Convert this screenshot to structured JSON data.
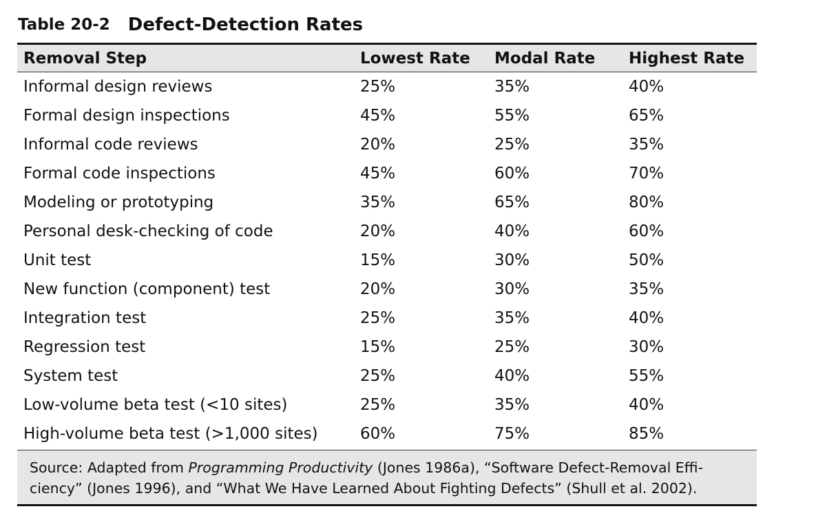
{
  "caption": {
    "label": "Table 20-2",
    "title": "Defect-Detection Rates"
  },
  "table": {
    "headers": [
      "Removal Step",
      "Lowest Rate",
      "Modal Rate",
      "Highest Rate"
    ],
    "rows": [
      [
        "Informal design reviews",
        "25%",
        "35%",
        "40%"
      ],
      [
        "Formal design inspections",
        "45%",
        "55%",
        "65%"
      ],
      [
        "Informal code reviews",
        "20%",
        "25%",
        "35%"
      ],
      [
        "Formal code inspections",
        "45%",
        "60%",
        "70%"
      ],
      [
        "Modeling or prototyping",
        "35%",
        "65%",
        "80%"
      ],
      [
        "Personal desk-checking of code",
        "20%",
        "40%",
        "60%"
      ],
      [
        "Unit test",
        "15%",
        "30%",
        "50%"
      ],
      [
        "New function (component) test",
        "20%",
        "30%",
        "35%"
      ],
      [
        "Integration test",
        "25%",
        "35%",
        "40%"
      ],
      [
        "Regression test",
        "15%",
        "25%",
        "30%"
      ],
      [
        "System test",
        "25%",
        "40%",
        "55%"
      ],
      [
        "Low-volume beta test (<10 sites)",
        "25%",
        "35%",
        "40%"
      ],
      [
        "High-volume beta test (>1,000 sites)",
        "60%",
        "75%",
        "85%"
      ]
    ]
  },
  "source": {
    "prefix": "Source: Adapted from ",
    "italic": "Programming Productivity",
    "line1_rest": " (Jones 1986a), “Software Defect-Removal Effi-",
    "line2": "ciency” (Jones 1996), and “What We Have Learned About Fighting Defects” (Shull et al. 2002)."
  }
}
